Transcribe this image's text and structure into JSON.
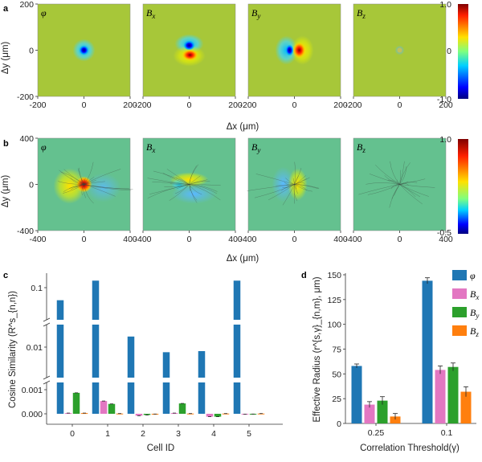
{
  "panel_letters": [
    "a",
    "b",
    "c",
    "d"
  ],
  "palette": {
    "tab_blue": "#1f77b4",
    "pink": "#e377c2",
    "green": "#2ca02c",
    "orange": "#ff7f0e",
    "field_a": "#a7c739",
    "field_b": "#64c18f"
  },
  "chart_data": [
    {
      "type": "heatmap",
      "id": "a",
      "subplots": [
        "φ",
        "Bx",
        "By",
        "Bz"
      ],
      "x_ticks": [
        "-200",
        "0",
        "200"
      ],
      "x_ticks_shared": [
        "-200",
        "0",
        "200"
      ],
      "y_ticks": [
        "200",
        "0",
        "-200"
      ],
      "xlabel": "Δx (μm)",
      "ylabel": "Δy (μm)",
      "colorbar_ticks": [
        "1.0",
        "0",
        "-1.0"
      ],
      "xlim": [
        -200,
        200
      ],
      "ylim": [
        -200,
        200
      ]
    },
    {
      "type": "heatmap",
      "id": "b",
      "subplots": [
        "φ",
        "Bx",
        "By",
        "Bz"
      ],
      "x_ticks": [
        "-400",
        "0",
        "400"
      ],
      "x_ticks_shared": [
        "-400",
        "0",
        "400"
      ],
      "y_ticks": [
        "400",
        "0",
        "-400"
      ],
      "xlabel": "Δx (μm)",
      "ylabel": "Δy (μm)",
      "colorbar_ticks": [
        "1.0",
        "-0.5"
      ],
      "xlim": [
        -400,
        400
      ],
      "ylim": [
        -400,
        400
      ]
    },
    {
      "type": "bar",
      "id": "c",
      "ylabel": "Cosine Similarity (R^s_{n,n})",
      "xlabel": "Cell ID",
      "categories": [
        "0",
        "1",
        "2",
        "3",
        "4",
        "5"
      ],
      "y_ticks": [
        "0.1",
        "0.01",
        "0.001",
        "0.000"
      ],
      "broken_y_axis": true,
      "series": [
        {
          "name": "φ",
          "color": "#1f77b4",
          "values": [
            0.067,
            0.125,
            0.014,
            0.0085,
            0.0088,
            0.125
          ]
        },
        {
          "name": "Bx",
          "color": "#e377c2",
          "values": [
            3e-05,
            0.00053,
            -8e-05,
            3e-05,
            -0.00012,
            -2e-05
          ]
        },
        {
          "name": "By",
          "color": "#2ca02c",
          "values": [
            0.00087,
            0.00041,
            -5e-05,
            0.00043,
            -0.00012,
            -1e-05
          ]
        },
        {
          "name": "Bz",
          "color": "#ff7f0e",
          "values": [
            3e-05,
            1e-05,
            -1e-05,
            1e-05,
            1e-05,
            1e-05
          ]
        }
      ]
    },
    {
      "type": "bar",
      "id": "d",
      "ylabel": "Effective Radius (r^{s,γ}_{n,m}, μm)",
      "xlabel": "Correlation Threshold(γ)",
      "categories": [
        "0.25",
        "0.1"
      ],
      "ylim": [
        0,
        150
      ],
      "y_ticks": [
        "0",
        "25",
        "50",
        "75",
        "100",
        "125",
        "150"
      ],
      "legend": [
        "φ",
        "Bx",
        "By",
        "Bz"
      ],
      "series": [
        {
          "name": "φ",
          "color": "#1f77b4",
          "values": [
            58,
            144
          ],
          "errors": [
            2,
            3
          ]
        },
        {
          "name": "Bx",
          "color": "#e377c2",
          "values": [
            19,
            54
          ],
          "errors": [
            3,
            4
          ]
        },
        {
          "name": "By",
          "color": "#2ca02c",
          "values": [
            23,
            57
          ],
          "errors": [
            4,
            4
          ]
        },
        {
          "name": "Bz",
          "color": "#ff7f0e",
          "values": [
            7,
            32
          ],
          "errors": [
            3,
            5
          ]
        }
      ]
    }
  ]
}
